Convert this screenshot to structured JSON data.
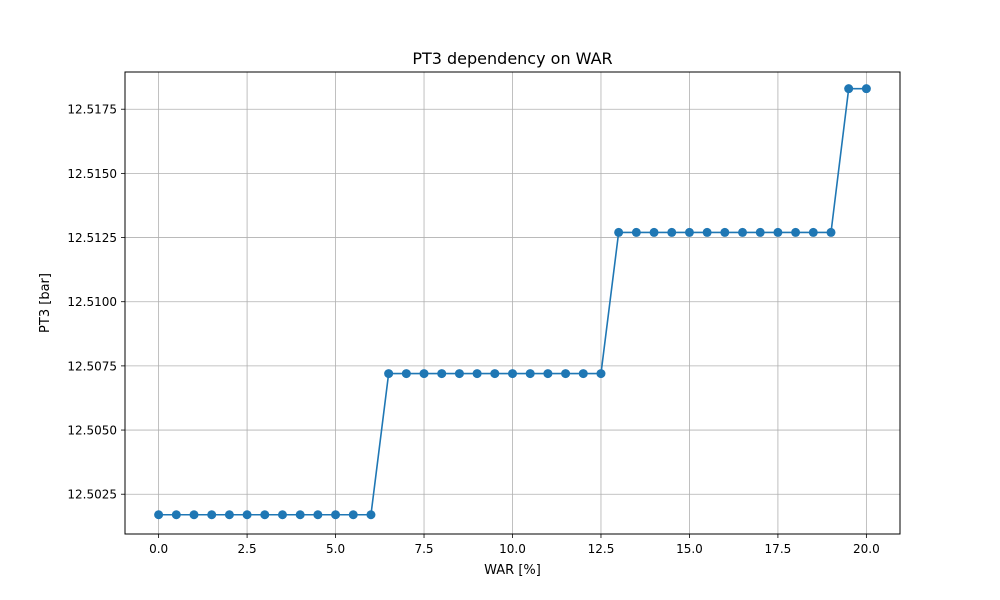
{
  "chart_data": {
    "type": "line",
    "title": "PT3 dependency on WAR",
    "xlabel": "WAR [%]",
    "ylabel": "PT3 [bar]",
    "xlim": [
      -0.95,
      20.95
    ],
    "ylim": [
      12.50095,
      12.51895
    ],
    "xticks": [
      0.0,
      2.5,
      5.0,
      7.5,
      10.0,
      12.5,
      15.0,
      17.5,
      20.0
    ],
    "xtick_labels": [
      "0.0",
      "2.5",
      "5.0",
      "7.5",
      "10.0",
      "12.5",
      "15.0",
      "17.5",
      "20.0"
    ],
    "yticks": [
      12.5025,
      12.505,
      12.5075,
      12.51,
      12.5125,
      12.515,
      12.5175
    ],
    "ytick_labels": [
      "12.5025",
      "12.5050",
      "12.5075",
      "12.5100",
      "12.5125",
      "12.5150",
      "12.5175"
    ],
    "grid": true,
    "series": [
      {
        "color": "#1f77b4",
        "marker": "circle",
        "x": [
          0.0,
          0.5,
          1.0,
          1.5,
          2.0,
          2.5,
          3.0,
          3.5,
          4.0,
          4.5,
          5.0,
          5.5,
          6.0,
          6.5,
          7.0,
          7.5,
          8.0,
          8.5,
          9.0,
          9.5,
          10.0,
          10.5,
          11.0,
          11.5,
          12.0,
          12.5,
          13.0,
          13.5,
          14.0,
          14.5,
          15.0,
          15.5,
          16.0,
          16.5,
          17.0,
          17.5,
          18.0,
          18.5,
          19.0,
          19.5,
          20.0
        ],
        "y": [
          12.5017,
          12.5017,
          12.5017,
          12.5017,
          12.5017,
          12.5017,
          12.5017,
          12.5017,
          12.5017,
          12.5017,
          12.5017,
          12.5017,
          12.5017,
          12.5072,
          12.5072,
          12.5072,
          12.5072,
          12.5072,
          12.5072,
          12.5072,
          12.5072,
          12.5072,
          12.5072,
          12.5072,
          12.5072,
          12.5072,
          12.5127,
          12.5127,
          12.5127,
          12.5127,
          12.5127,
          12.5127,
          12.5127,
          12.5127,
          12.5127,
          12.5127,
          12.5127,
          12.5127,
          12.5127,
          12.5183,
          12.5183
        ]
      }
    ]
  }
}
